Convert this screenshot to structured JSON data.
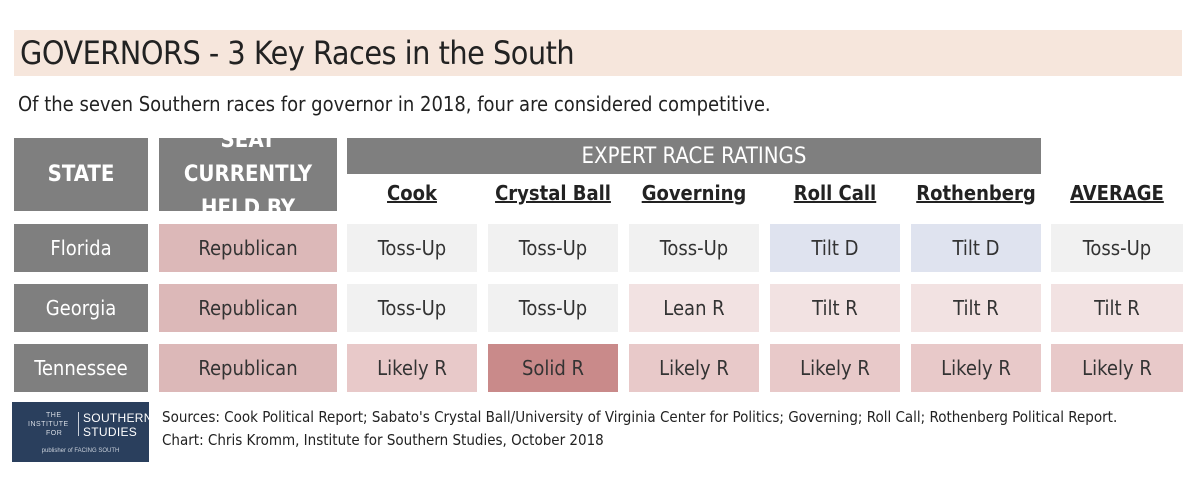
{
  "title": "GOVERNORS - 3 Key Races in the South",
  "subtitle": "Of the seven Southern races for governor in 2018, four are considered competitive.",
  "colors": {
    "header_gray": "#7f7f7f",
    "title_band": "#f6e6dc",
    "toss_up": "#f1f1f1",
    "tilt_d": "#dfe3ef",
    "tilt_r": "#f2e2e2",
    "lean_r": "#f2e2e2",
    "likely_r": "#e8c9c9",
    "solid_r": "#c98a8a",
    "republican_seat": "#dcb8b8"
  },
  "chart_data": {
    "type": "table",
    "headers": {
      "state": "STATE",
      "seat_line1": "SEAT CURRENTLY",
      "seat_line2": "HELD BY",
      "expert": "EXPERT RACE RATINGS",
      "raters": [
        "Cook",
        "Crystal Ball",
        "Governing",
        "Roll Call",
        "Rothenberg"
      ],
      "average": "AVERAGE"
    },
    "rows": [
      {
        "state": "Florida",
        "seat": "Republican",
        "ratings": [
          "Toss-Up",
          "Toss-Up",
          "Toss-Up",
          "Tilt D",
          "Tilt D"
        ],
        "average": "Toss-Up"
      },
      {
        "state": "Georgia",
        "seat": "Republican",
        "ratings": [
          "Toss-Up",
          "Toss-Up",
          "Lean R",
          "Tilt R",
          "Tilt R"
        ],
        "average": "Tilt R"
      },
      {
        "state": "Tennessee",
        "seat": "Republican",
        "ratings": [
          "Likely R",
          "Solid R",
          "Likely R",
          "Likely R",
          "Likely R"
        ],
        "average": "Likely R"
      }
    ]
  },
  "logo": {
    "line_the": "THE",
    "line_institute": "INSTITUTE",
    "line_for": "FOR",
    "line_southern": "SOUTHERN",
    "line_studies": "STUDIES",
    "tagline": "publisher of FACING SOUTH"
  },
  "sources_line1": "Sources: Cook Political Report; Sabato's Crystal Ball/University of Virginia Center for Politics; Governing; Roll Call; Rothenberg Political Report.",
  "sources_line2": "Chart: Chris Kromm, Institute for Southern Studies, October 2018"
}
